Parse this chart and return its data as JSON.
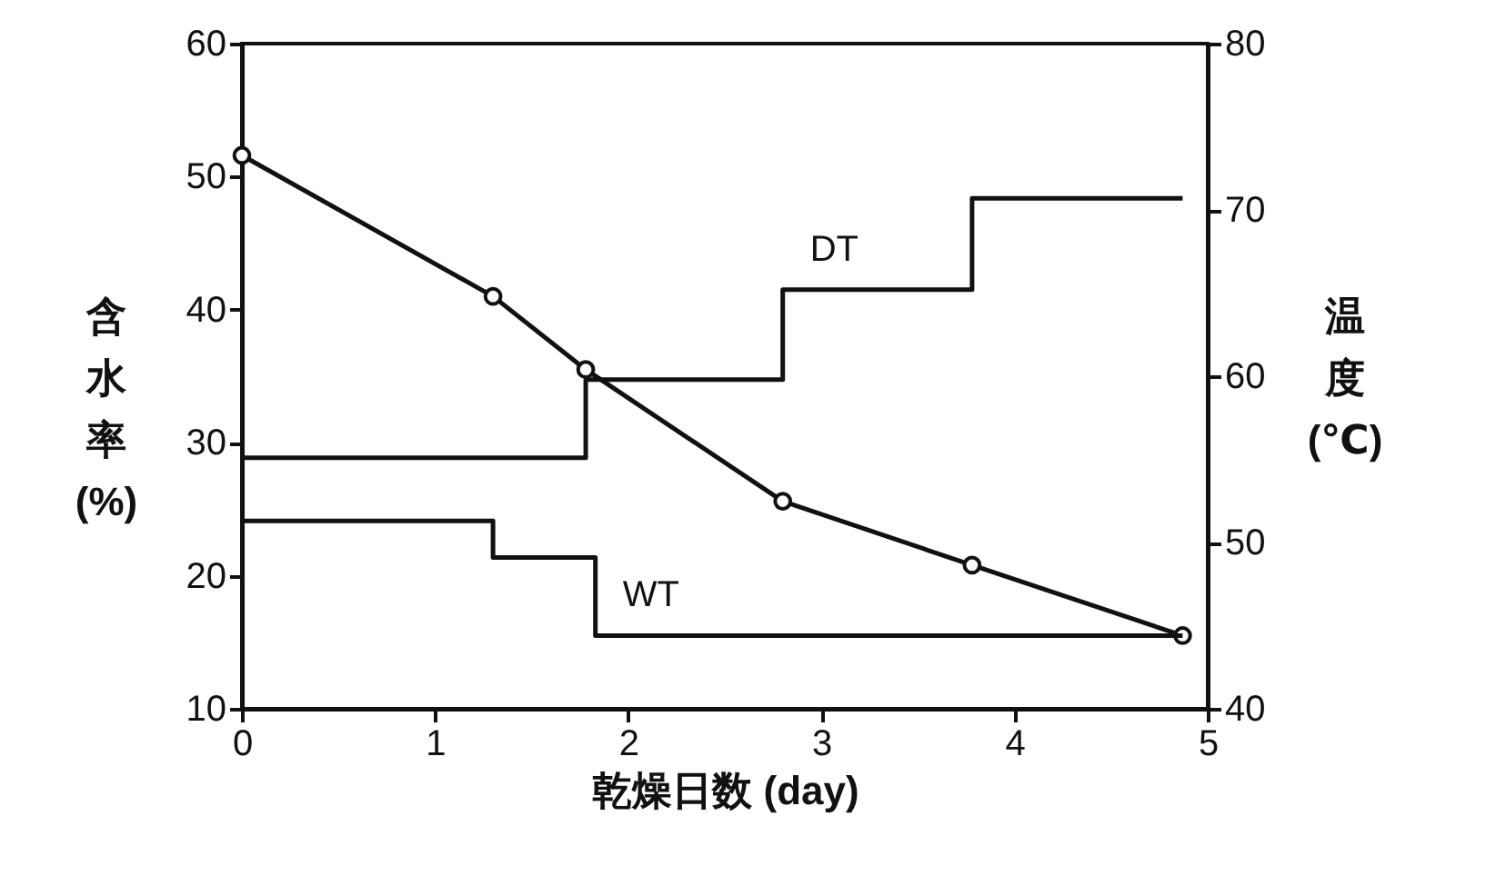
{
  "chart_data": {
    "type": "line",
    "xlabel": "乾燥日数 (day)",
    "ylabel": "含水率 (%)",
    "y2label": "温度 (℃)",
    "xlim": [
      0,
      5
    ],
    "xticks": [
      0,
      1,
      2,
      3,
      4,
      5
    ],
    "ylim": [
      10,
      60
    ],
    "yticks": [
      10,
      20,
      30,
      40,
      50,
      60
    ],
    "y2lim": [
      40,
      80
    ],
    "y2ticks": [
      40,
      50,
      60,
      70,
      80
    ],
    "grid": false,
    "marker": "circle",
    "line_style": "solid",
    "x": [
      0,
      1.3,
      1.78,
      2.8,
      3.78,
      4.87
    ],
    "series": [
      {
        "color": "#111111",
        "values": [
          51.6,
          41.0,
          35.5,
          25.6,
          20.8,
          15.5
        ]
      },
      {
        "name": "DT",
        "type": "step",
        "axis": "y2",
        "color": "#111111",
        "x": [
          0,
          1.78,
          2.8,
          3.78,
          4.87
        ],
        "values": [
          55.1,
          59.8,
          65.2,
          70.7,
          70.7
        ],
        "marker": "none"
      },
      {
        "name": "WT",
        "type": "step",
        "axis": "y2",
        "color": "#111111",
        "x": [
          0,
          1.3,
          1.83,
          4.87
        ],
        "values": [
          51.3,
          49.1,
          44.4,
          44.4
        ],
        "marker": "none"
      }
    ]
  }
}
